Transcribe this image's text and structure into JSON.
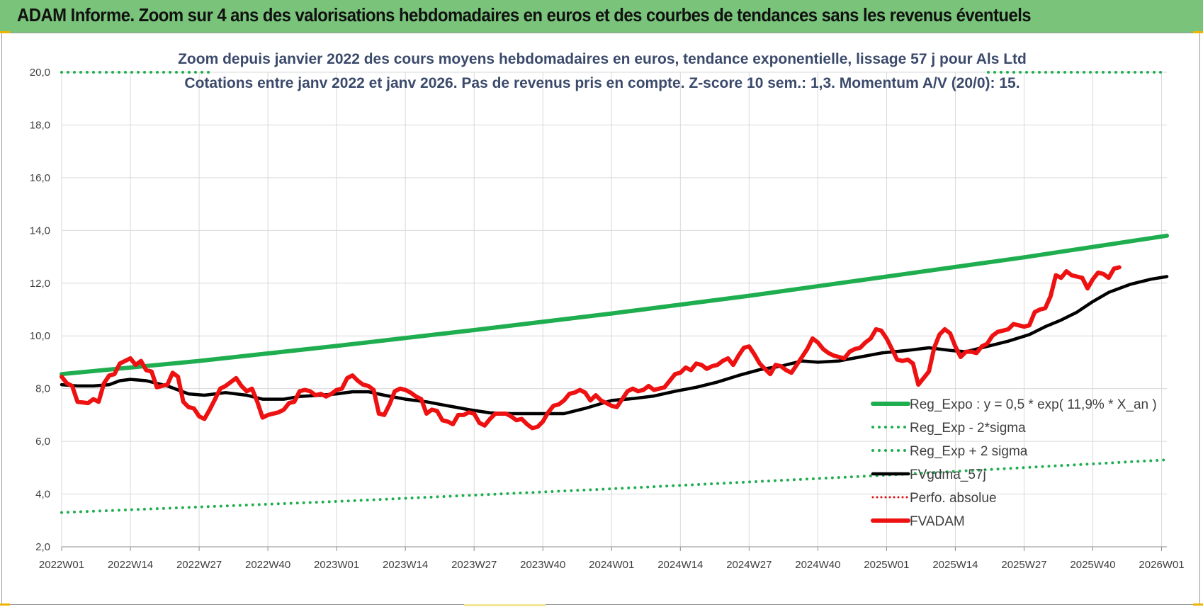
{
  "banner": {
    "title": "ADAM Informe. Zoom sur 4 ans des valorisations hebdomadaires en euros et des courbes de tendances sans les revenus éventuels"
  },
  "colors": {
    "banner_bg": "#79c47a",
    "reg_expo": "#1fae4f",
    "bands": "#1fae4f",
    "fvgdma": "#000000",
    "perfo": "#e01010",
    "fvadam": "#ee1111",
    "grid": "#d9d9d9"
  },
  "chart_data": {
    "type": "line",
    "title": "Zoom depuis janvier 2022 des cours moyens hebdomadaires en euros, tendance exponentielle, lissage 57 j pour Als Ltd",
    "subtitle": "Cotations entre janv 2022 et janv 2026. Pas de revenus pris en compte. Z-score 10 sem.: 1,3. Momentum A/V (20/0):  15.",
    "xlabel": "",
    "ylabel": "",
    "ylim": [
      2.0,
      20.0
    ],
    "yticks": [
      "2,0",
      "4,0",
      "6,0",
      "8,0",
      "10,0",
      "12,0",
      "14,0",
      "16,0",
      "18,0",
      "20,0"
    ],
    "x_range_weeks": [
      0,
      209
    ],
    "x_ticks": [
      {
        "label": "2022W01",
        "week": 0
      },
      {
        "label": "2022W14",
        "week": 13
      },
      {
        "label": "2022W27",
        "week": 26
      },
      {
        "label": "2022W40",
        "week": 39
      },
      {
        "label": "2023W01",
        "week": 52
      },
      {
        "label": "2023W14",
        "week": 65
      },
      {
        "label": "2023W27",
        "week": 78
      },
      {
        "label": "2023W40",
        "week": 91
      },
      {
        "label": "2024W01",
        "week": 104
      },
      {
        "label": "2024W14",
        "week": 117
      },
      {
        "label": "2024W27",
        "week": 130
      },
      {
        "label": "2024W40",
        "week": 143
      },
      {
        "label": "2025W01",
        "week": 156
      },
      {
        "label": "2025W14",
        "week": 169
      },
      {
        "label": "2025W27",
        "week": 182
      },
      {
        "label": "2025W40",
        "week": 195
      },
      {
        "label": "2026W01",
        "week": 208
      }
    ],
    "legend_position": "bottom-right",
    "series": [
      {
        "name": "Reg_Expo : y = 0,5 * exp( 11,9% *  X_an )",
        "style": "solid-thick",
        "points": [
          [
            0,
            8.55
          ],
          [
            26,
            9.05
          ],
          [
            52,
            9.62
          ],
          [
            78,
            10.22
          ],
          [
            104,
            10.85
          ],
          [
            130,
            11.52
          ],
          [
            156,
            12.25
          ],
          [
            182,
            12.98
          ],
          [
            209,
            13.8
          ]
        ]
      },
      {
        "name": "Reg_Exp - 2*sigma",
        "style": "dotted",
        "points": [
          [
            0,
            3.3
          ],
          [
            52,
            3.72
          ],
          [
            104,
            4.2
          ],
          [
            156,
            4.72
          ],
          [
            209,
            5.3
          ]
        ]
      },
      {
        "name": "Reg_Exp + 2 sigma",
        "style": "dotted",
        "points": [
          [
            0,
            20.0
          ],
          [
            209,
            20.0
          ]
        ]
      },
      {
        "name": "FVgdma_57j",
        "style": "solid-medium",
        "points": [
          [
            0,
            8.15
          ],
          [
            3,
            8.1
          ],
          [
            6,
            8.1
          ],
          [
            9,
            8.15
          ],
          [
            11,
            8.3
          ],
          [
            13,
            8.35
          ],
          [
            16,
            8.3
          ],
          [
            20,
            8.1
          ],
          [
            24,
            7.8
          ],
          [
            27,
            7.75
          ],
          [
            31,
            7.85
          ],
          [
            35,
            7.75
          ],
          [
            38,
            7.6
          ],
          [
            42,
            7.6
          ],
          [
            45,
            7.7
          ],
          [
            49,
            7.75
          ],
          [
            52,
            7.8
          ],
          [
            55,
            7.88
          ],
          [
            58,
            7.88
          ],
          [
            61,
            7.75
          ],
          [
            65,
            7.6
          ],
          [
            69,
            7.5
          ],
          [
            73,
            7.35
          ],
          [
            77,
            7.2
          ],
          [
            81,
            7.08
          ],
          [
            85,
            7.05
          ],
          [
            89,
            7.05
          ],
          [
            95,
            7.05
          ],
          [
            99,
            7.25
          ],
          [
            104,
            7.55
          ],
          [
            108,
            7.62
          ],
          [
            112,
            7.72
          ],
          [
            116,
            7.9
          ],
          [
            120,
            8.05
          ],
          [
            124,
            8.25
          ],
          [
            128,
            8.5
          ],
          [
            132,
            8.72
          ],
          [
            136,
            8.85
          ],
          [
            140,
            9.05
          ],
          [
            143,
            9.0
          ],
          [
            147,
            9.05
          ],
          [
            151,
            9.2
          ],
          [
            155,
            9.35
          ],
          [
            160,
            9.45
          ],
          [
            164,
            9.55
          ],
          [
            168,
            9.45
          ],
          [
            171,
            9.4
          ],
          [
            175,
            9.6
          ],
          [
            179,
            9.8
          ],
          [
            183,
            10.05
          ],
          [
            186,
            10.35
          ],
          [
            189,
            10.6
          ],
          [
            192,
            10.9
          ],
          [
            195,
            11.3
          ],
          [
            198,
            11.65
          ],
          [
            202,
            11.95
          ],
          [
            206,
            12.15
          ],
          [
            209,
            12.25
          ]
        ]
      },
      {
        "name": "Perfo. absolue",
        "style": "dotted",
        "points": []
      },
      {
        "name": "FVADAM",
        "style": "solid-thick",
        "points": [
          [
            0,
            8.45
          ],
          [
            1,
            8.2
          ],
          [
            2,
            8.1
          ],
          [
            3,
            7.5
          ],
          [
            5,
            7.45
          ],
          [
            6,
            7.6
          ],
          [
            7,
            7.5
          ],
          [
            8,
            8.2
          ],
          [
            9,
            8.5
          ],
          [
            10,
            8.55
          ],
          [
            11,
            8.95
          ],
          [
            13,
            9.15
          ],
          [
            14,
            8.9
          ],
          [
            15,
            9.05
          ],
          [
            16,
            8.7
          ],
          [
            17,
            8.65
          ],
          [
            18,
            8.05
          ],
          [
            19,
            8.1
          ],
          [
            20,
            8.15
          ],
          [
            21,
            8.6
          ],
          [
            22,
            8.45
          ],
          [
            23,
            7.5
          ],
          [
            24,
            7.3
          ],
          [
            25,
            7.25
          ],
          [
            26,
            6.95
          ],
          [
            27,
            6.85
          ],
          [
            28,
            7.2
          ],
          [
            29,
            7.6
          ],
          [
            30,
            8.0
          ],
          [
            31,
            8.1
          ],
          [
            33,
            8.4
          ],
          [
            34,
            8.1
          ],
          [
            35,
            7.9
          ],
          [
            36,
            8.0
          ],
          [
            37,
            7.5
          ],
          [
            38,
            6.9
          ],
          [
            39,
            7.0
          ],
          [
            41,
            7.1
          ],
          [
            42,
            7.2
          ],
          [
            43,
            7.45
          ],
          [
            44,
            7.5
          ],
          [
            45,
            7.9
          ],
          [
            46,
            7.95
          ],
          [
            47,
            7.9
          ],
          [
            48,
            7.75
          ],
          [
            49,
            7.8
          ],
          [
            50,
            7.7
          ],
          [
            51,
            7.8
          ],
          [
            52,
            7.95
          ],
          [
            53,
            8.0
          ],
          [
            54,
            8.4
          ],
          [
            55,
            8.5
          ],
          [
            56,
            8.3
          ],
          [
            57,
            8.15
          ],
          [
            58,
            8.1
          ],
          [
            59,
            7.95
          ],
          [
            60,
            7.05
          ],
          [
            61,
            7.0
          ],
          [
            62,
            7.4
          ],
          [
            63,
            7.9
          ],
          [
            64,
            8.0
          ],
          [
            65,
            7.95
          ],
          [
            66,
            7.85
          ],
          [
            67,
            7.7
          ],
          [
            68,
            7.6
          ],
          [
            69,
            7.05
          ],
          [
            70,
            7.2
          ],
          [
            71,
            7.15
          ],
          [
            72,
            6.8
          ],
          [
            73,
            6.75
          ],
          [
            74,
            6.65
          ],
          [
            75,
            7.0
          ],
          [
            76,
            7.0
          ],
          [
            77,
            7.1
          ],
          [
            78,
            7.05
          ],
          [
            79,
            6.7
          ],
          [
            80,
            6.6
          ],
          [
            81,
            6.85
          ],
          [
            82,
            7.05
          ],
          [
            84,
            7.05
          ],
          [
            85,
            6.95
          ],
          [
            86,
            6.8
          ],
          [
            87,
            6.85
          ],
          [
            88,
            6.65
          ],
          [
            89,
            6.5
          ],
          [
            90,
            6.55
          ],
          [
            91,
            6.75
          ],
          [
            92,
            7.1
          ],
          [
            93,
            7.35
          ],
          [
            94,
            7.4
          ],
          [
            95,
            7.55
          ],
          [
            96,
            7.8
          ],
          [
            97,
            7.85
          ],
          [
            98,
            7.95
          ],
          [
            99,
            7.85
          ],
          [
            100,
            7.55
          ],
          [
            101,
            7.75
          ],
          [
            102,
            7.55
          ],
          [
            103,
            7.45
          ],
          [
            104,
            7.35
          ],
          [
            105,
            7.3
          ],
          [
            106,
            7.6
          ],
          [
            107,
            7.9
          ],
          [
            108,
            8.0
          ],
          [
            109,
            7.9
          ],
          [
            110,
            7.95
          ],
          [
            111,
            8.1
          ],
          [
            112,
            7.95
          ],
          [
            113,
            8.0
          ],
          [
            114,
            8.05
          ],
          [
            115,
            8.3
          ],
          [
            116,
            8.55
          ],
          [
            117,
            8.6
          ],
          [
            118,
            8.8
          ],
          [
            119,
            8.7
          ],
          [
            120,
            8.95
          ],
          [
            121,
            8.9
          ],
          [
            122,
            8.75
          ],
          [
            123,
            8.85
          ],
          [
            124,
            8.9
          ],
          [
            125,
            9.05
          ],
          [
            126,
            9.15
          ],
          [
            127,
            8.9
          ],
          [
            128,
            9.25
          ],
          [
            129,
            9.55
          ],
          [
            130,
            9.6
          ],
          [
            131,
            9.3
          ],
          [
            132,
            8.95
          ],
          [
            133,
            8.75
          ],
          [
            134,
            8.55
          ],
          [
            135,
            8.9
          ],
          [
            136,
            8.85
          ],
          [
            137,
            8.7
          ],
          [
            138,
            8.6
          ],
          [
            139,
            8.9
          ],
          [
            140,
            9.2
          ],
          [
            141,
            9.5
          ],
          [
            142,
            9.9
          ],
          [
            143,
            9.75
          ],
          [
            144,
            9.5
          ],
          [
            145,
            9.35
          ],
          [
            146,
            9.25
          ],
          [
            147,
            9.2
          ],
          [
            148,
            9.15
          ],
          [
            149,
            9.4
          ],
          [
            150,
            9.5
          ],
          [
            151,
            9.55
          ],
          [
            152,
            9.75
          ],
          [
            153,
            9.9
          ],
          [
            154,
            10.25
          ],
          [
            155,
            10.2
          ],
          [
            156,
            9.9
          ],
          [
            157,
            9.5
          ],
          [
            158,
            9.1
          ],
          [
            159,
            9.05
          ],
          [
            160,
            9.1
          ],
          [
            161,
            8.95
          ],
          [
            162,
            8.15
          ],
          [
            163,
            8.4
          ],
          [
            164,
            8.65
          ],
          [
            165,
            9.55
          ],
          [
            166,
            10.05
          ],
          [
            167,
            10.25
          ],
          [
            168,
            10.1
          ],
          [
            169,
            9.6
          ],
          [
            170,
            9.2
          ],
          [
            171,
            9.4
          ],
          [
            172,
            9.4
          ],
          [
            173,
            9.35
          ],
          [
            174,
            9.6
          ],
          [
            175,
            9.7
          ],
          [
            176,
            10.0
          ],
          [
            177,
            10.15
          ],
          [
            178,
            10.2
          ],
          [
            179,
            10.25
          ],
          [
            180,
            10.45
          ],
          [
            181,
            10.4
          ],
          [
            182,
            10.35
          ],
          [
            183,
            10.4
          ],
          [
            184,
            10.9
          ],
          [
            185,
            11.0
          ],
          [
            186,
            11.05
          ],
          [
            187,
            11.5
          ],
          [
            188,
            12.3
          ],
          [
            189,
            12.2
          ],
          [
            190,
            12.45
          ],
          [
            191,
            12.3
          ],
          [
            192,
            12.25
          ],
          [
            193,
            12.2
          ],
          [
            194,
            11.8
          ],
          [
            195,
            12.15
          ],
          [
            196,
            12.4
          ],
          [
            197,
            12.35
          ],
          [
            198,
            12.2
          ],
          [
            199,
            12.55
          ],
          [
            200,
            12.6
          ]
        ]
      }
    ]
  }
}
